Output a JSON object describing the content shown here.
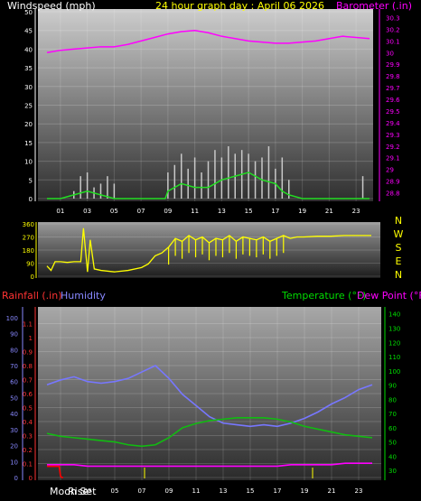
{
  "header": {
    "title": "24 hour graph day : April 06 2026",
    "windspeed_label": "Windspeed (mph)",
    "barometer_label": "Barometer (.in)",
    "rainfall_label": "Rainfall (.in)",
    "humidity_label": "Humidity",
    "temperature_label": "Temperature (°F)",
    "dewpoint_label": "Dew Point (°F)",
    "moonset_label": "Moon Set",
    "moonrise_label": "Rise"
  },
  "colors": {
    "windspeed": "#ffffff",
    "gust": "#c8c8c8",
    "avg_wind": "#22dd22",
    "barometer": "#ff00ff",
    "direction": "#ffff00",
    "humidity": "#7777ff",
    "temperature": "#11bb11",
    "dewpoint": "#ff00ff",
    "rainfall": "#ff0000",
    "title": "#ffff00",
    "rain_axis": "#ff3333",
    "hum_axis": "#8888ff",
    "temp_axis": "#00dd00"
  },
  "chart_data": [
    {
      "type": "line",
      "name": "wind-baro",
      "x_ticks": [
        "01",
        "03",
        "05",
        "07",
        "09",
        "11",
        "13",
        "15",
        "17",
        "19",
        "21",
        "23"
      ],
      "left_ticks": [
        "0",
        "5",
        "10",
        "15",
        "20",
        "25",
        "30",
        "35",
        "40",
        "45",
        "50"
      ],
      "right_ticks": [
        "28.8",
        "28.9",
        "29",
        "29.1",
        "29.2",
        "29.3",
        "29.4",
        "29.5",
        "29.6",
        "29.7",
        "29.8",
        "29.9",
        "30",
        "30.1",
        "30.2",
        "30.3"
      ],
      "ylim_left": [
        0,
        50
      ],
      "ylim_right": [
        28.75,
        30.35
      ],
      "series": [
        {
          "key": "barometer",
          "x": [
            0,
            1,
            2,
            3,
            4,
            5,
            6,
            7,
            8,
            9,
            10,
            11,
            12,
            13,
            14,
            15,
            16,
            17,
            18,
            19,
            20,
            21,
            22,
            23,
            24
          ],
          "values": [
            30.0,
            30.02,
            30.03,
            30.04,
            30.05,
            30.05,
            30.07,
            30.1,
            30.13,
            30.16,
            30.18,
            30.19,
            30.17,
            30.14,
            30.12,
            30.1,
            30.09,
            30.08,
            30.08,
            30.09,
            30.1,
            30.12,
            30.14,
            30.13,
            30.12
          ]
        },
        {
          "key": "gust",
          "x": [
            0,
            1,
            2,
            2.5,
            3,
            3.5,
            4,
            4.5,
            5,
            8.8,
            9,
            9.5,
            10,
            10.5,
            11,
            11.5,
            12,
            12.5,
            13,
            13.5,
            14,
            14.5,
            15,
            15.5,
            16,
            16.5,
            17,
            17.5,
            18,
            19,
            22,
            23.3,
            23.5,
            24
          ],
          "values": [
            0,
            0,
            2,
            6,
            7,
            3,
            4,
            6,
            4,
            0,
            7,
            9,
            12,
            8,
            11,
            7,
            10,
            13,
            11,
            14,
            12,
            13,
            12,
            10,
            11,
            14,
            8,
            11,
            5,
            0,
            0,
            0,
            6,
            0
          ]
        },
        {
          "key": "avg_wind",
          "x": [
            0,
            1,
            2,
            3,
            4,
            5,
            8.8,
            9,
            10,
            11,
            12,
            13,
            14,
            15,
            16,
            17,
            17.5,
            18,
            19,
            24
          ],
          "values": [
            0,
            0,
            1,
            2,
            1,
            0,
            0,
            2,
            4,
            3,
            3,
            5,
            6,
            7,
            5,
            4,
            2,
            1,
            0,
            0
          ]
        }
      ]
    },
    {
      "type": "scatter",
      "name": "wind-direction",
      "left_ticks": [
        "0",
        "90",
        "180",
        "270",
        "360"
      ],
      "compass": [
        "N",
        "W",
        "S",
        "E",
        "N"
      ],
      "ylim": [
        0,
        360
      ],
      "series": [
        {
          "key": "direction",
          "x": [
            0,
            0.3,
            0.6,
            1,
            1.5,
            2,
            2.5,
            2.7,
            3,
            3.2,
            3.5,
            4,
            5,
            6,
            7,
            7.5,
            8,
            8.5,
            9,
            9.5,
            10,
            10.5,
            11,
            11.5,
            12,
            12.5,
            13,
            13.5,
            14,
            14.5,
            15,
            15.5,
            16,
            16.5,
            17,
            17.5,
            18,
            18.5,
            19,
            20,
            21,
            22,
            23,
            24
          ],
          "values": [
            70,
            40,
            100,
            100,
            95,
            100,
            100,
            330,
            30,
            250,
            50,
            40,
            30,
            40,
            60,
            85,
            140,
            160,
            200,
            260,
            240,
            280,
            250,
            270,
            230,
            260,
            250,
            280,
            240,
            270,
            260,
            250,
            270,
            240,
            260,
            280,
            260,
            270,
            270,
            275,
            275,
            280,
            280,
            280
          ]
        }
      ]
    },
    {
      "type": "line",
      "name": "rain-humidity-temp",
      "x_ticks": [
        "01",
        "03",
        "05",
        "07",
        "09",
        "11",
        "13",
        "15",
        "17",
        "19",
        "21",
        "23"
      ],
      "rain_ticks": [
        "0",
        "0.1",
        "0.2",
        "0.3",
        "0.4",
        "0.5",
        "0.6",
        "0.7",
        "0.8",
        "0.9",
        "1",
        "1.1"
      ],
      "hum_ticks": [
        "0",
        "10",
        "20",
        "30",
        "40",
        "50",
        "60",
        "70",
        "80",
        "90",
        "100"
      ],
      "temp_ticks": [
        "30",
        "40",
        "50",
        "60",
        "70",
        "80",
        "90",
        "100",
        "110",
        "120",
        "130",
        "140"
      ],
      "hum_ylim": [
        0,
        105
      ],
      "temp_ylim": [
        25,
        143
      ],
      "series": [
        {
          "key": "humidity",
          "x": [
            0,
            1,
            2,
            3,
            4,
            5,
            6,
            7,
            8,
            9,
            10,
            11,
            12,
            13,
            14,
            15,
            16,
            17,
            18,
            19,
            20,
            21,
            22,
            23,
            24
          ],
          "values": [
            58,
            61,
            63,
            60,
            59,
            60,
            62,
            66,
            70,
            62,
            52,
            45,
            38,
            34,
            33,
            32,
            33,
            32,
            34,
            37,
            41,
            46,
            50,
            55,
            58
          ]
        },
        {
          "key": "temperature",
          "x": [
            0,
            1,
            2,
            3,
            4,
            5,
            6,
            7,
            8,
            9,
            10,
            11,
            12,
            13,
            14,
            15,
            16,
            17,
            18,
            19,
            20,
            21,
            22,
            23,
            24
          ],
          "values": [
            56,
            54,
            53,
            52,
            51,
            50,
            48,
            47,
            48,
            53,
            60,
            63,
            65,
            66,
            67,
            67,
            67,
            66,
            64,
            61,
            59,
            57,
            55,
            54,
            53
          ]
        },
        {
          "key": "dewpoint",
          "x": [
            0,
            1,
            2,
            3,
            4,
            5,
            6,
            7,
            8,
            9,
            10,
            11,
            12,
            13,
            14,
            15,
            16,
            17,
            18,
            19,
            20,
            21,
            22,
            23,
            24
          ],
          "values": [
            34,
            34,
            34,
            33,
            33,
            33,
            33,
            33,
            33,
            33,
            33,
            33,
            33,
            33,
            33,
            33,
            33,
            33,
            34,
            34,
            34,
            34,
            35,
            35,
            35
          ]
        },
        {
          "key": "rainfall",
          "x": [
            0,
            0.3,
            0.6,
            0.9,
            1.0,
            1.1,
            1.2
          ],
          "values": [
            0.08,
            0.08,
            0.08,
            0.08,
            0.01,
            0,
            0
          ]
        }
      ],
      "moon_marks_x": [
        7.2,
        19.6
      ]
    }
  ]
}
